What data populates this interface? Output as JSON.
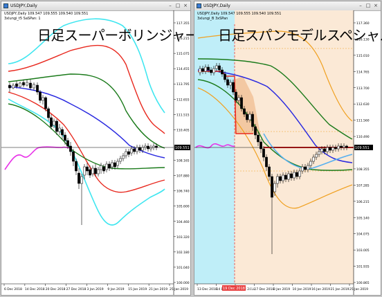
{
  "left_window": {
    "title": "USDJPY,Daily",
    "big_title": "日足スーパーボリンジャー",
    "info_line1": "USDJPY,Daily  109.547 109.555 109.540 109.551",
    "info_line2": "3xlungi_t5 SaSPan: 1",
    "price_ticks": [
      "117.355",
      "116.215",
      "115.075",
      "114.455",
      "113.795",
      "112.655",
      "111.515",
      "110.405",
      "109.551",
      "108.165",
      "107.880",
      "106.740",
      "105.600",
      "104.460",
      "103.320",
      "102.180",
      "101.040",
      "100.000"
    ],
    "current_price": "109.551",
    "date_ticks": [
      "6 Dec 2018",
      "14 Dec 2018",
      "20 Dec 2018",
      "27 Dec 2018",
      "3 Jan 2019",
      "9 Jan 2019",
      "15 Jan 2019",
      "21 Jan 2019",
      "25 Jan 2019"
    ]
  },
  "right_window": {
    "title": "USDJPY,Daily",
    "big_title": "日足スパンモデルスペシャル",
    "info_line1": "USDJPY,Daily  109.547 109.555 109.540 109.551",
    "info_line2": "3xlungi_B 3xSPan",
    "price_ticks": [
      "117.360",
      "116.130",
      "115.010",
      "114.765",
      "113.700",
      "112.630",
      "111.560",
      "110.490",
      "109.551",
      "108.355",
      "107.285",
      "106.215",
      "105.140",
      "104.075",
      "103.005",
      "101.935",
      "100.865"
    ],
    "current_price": "109.551",
    "date_ticks": [
      "13 Dec 2018",
      "14 Dec 2018",
      "21 Dec 2018",
      "27 Dec 2018",
      "3 Jan 2019",
      "10 Jan 2019",
      "16 Jan 2019",
      "21 Jan 2019",
      "25 Jan 2019"
    ],
    "highlighted_date": "19 Dec 2018 12:00"
  },
  "colors": {
    "cyan_band": "#3fe6f0",
    "red_band": "#e8281e",
    "green_line": "#1a7a1a",
    "blue_line": "#2a2ae0",
    "magenta_lag": "#e832e8",
    "orange_band": "#f0a020",
    "span_fill": "#fbe9d6",
    "cyan_fill": "#bfeef8"
  }
}
